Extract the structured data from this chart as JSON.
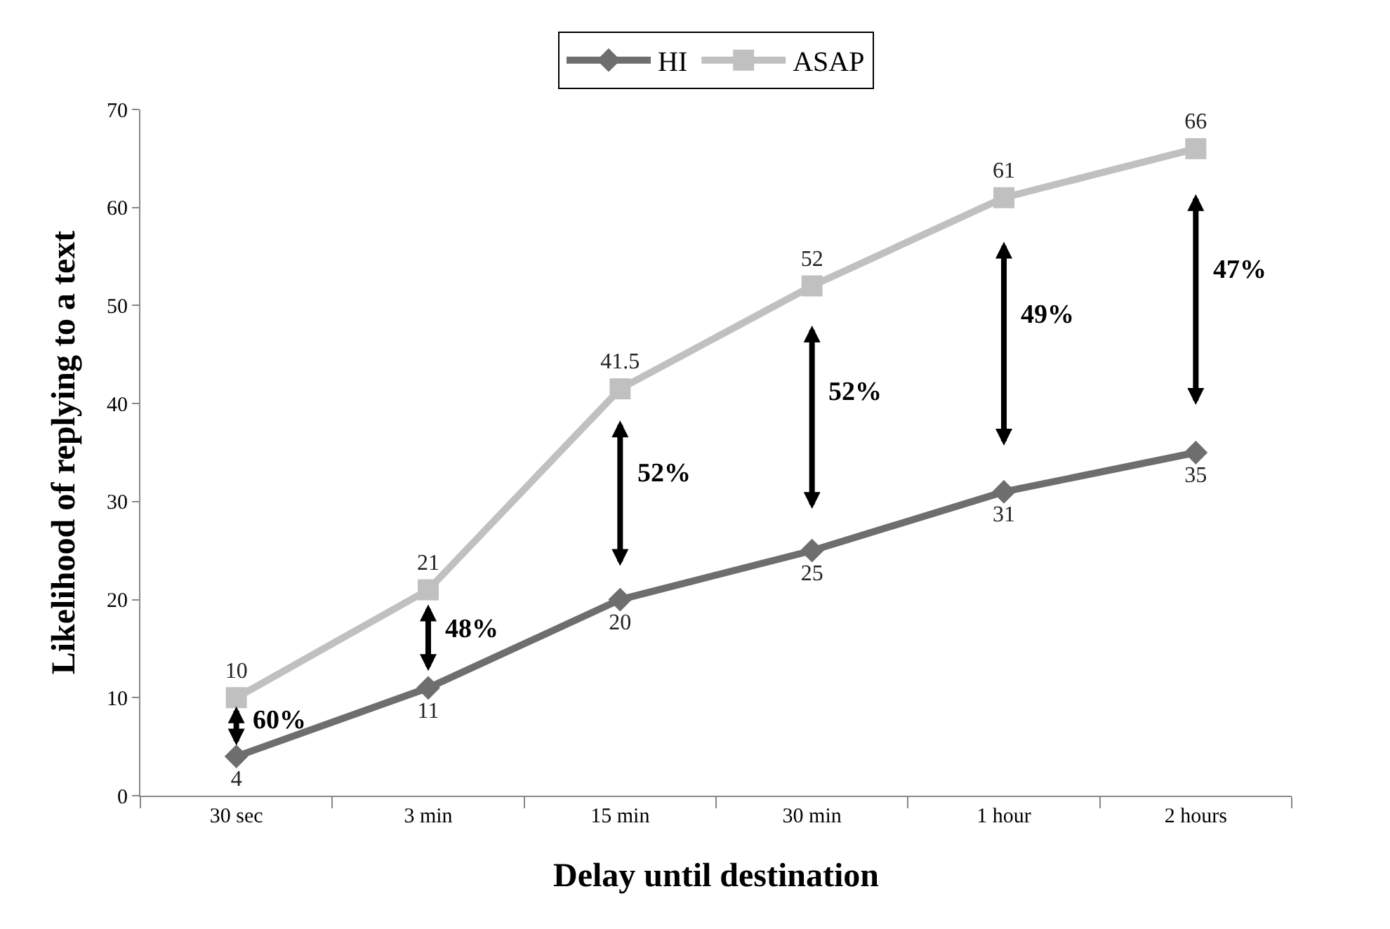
{
  "chart_data": {
    "type": "line",
    "xlabel": "Delay until destination",
    "ylabel": "Likelihood of replying to a text",
    "categories": [
      "30 sec",
      "3 min",
      "15 min",
      "30 min",
      "1 hour",
      "2 hours"
    ],
    "series": [
      {
        "name": "HI",
        "color": "#6e6e6e",
        "marker": "diamond",
        "values": [
          4,
          11,
          20,
          25,
          31,
          35
        ]
      },
      {
        "name": "ASAP",
        "color": "#c0c0c0",
        "marker": "square",
        "values": [
          10,
          21,
          41.5,
          52,
          61,
          66
        ]
      }
    ],
    "ylim": [
      0,
      70
    ],
    "yticks": [
      0,
      10,
      20,
      30,
      40,
      50,
      60,
      70
    ],
    "legend": "top",
    "data_labels": true,
    "line_style": "solid",
    "annotations": [
      "60%",
      "48%",
      "52%",
      "52%",
      "49%",
      "47%"
    ]
  }
}
